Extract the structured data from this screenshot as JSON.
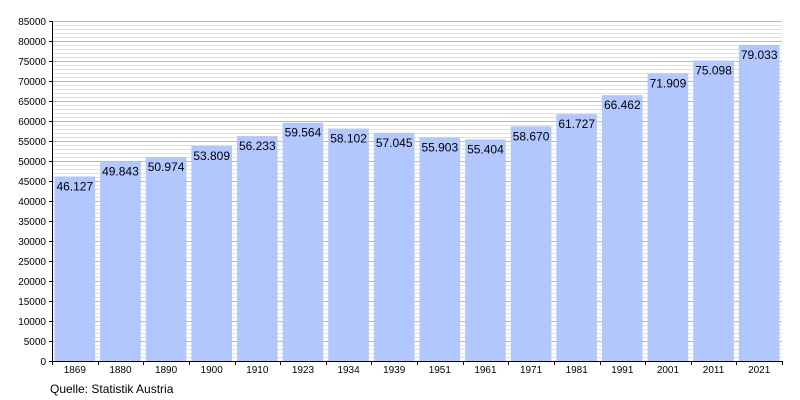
{
  "chart_data": {
    "type": "bar",
    "categories": [
      "1869",
      "1880",
      "1890",
      "1900",
      "1910",
      "1923",
      "1934",
      "1939",
      "1951",
      "1961",
      "1971",
      "1981",
      "1991",
      "2001",
      "2011",
      "2021"
    ],
    "values": [
      46127,
      49843,
      50974,
      53809,
      56233,
      59564,
      58102,
      57045,
      55903,
      55404,
      58670,
      61727,
      66462,
      71909,
      75098,
      79033
    ],
    "value_labels": [
      "46.127",
      "49.843",
      "50.974",
      "53.809",
      "56.233",
      "59.564",
      "58.102",
      "57.045",
      "55.903",
      "55.404",
      "58.670",
      "61.727",
      "66.462",
      "71.909",
      "75.098",
      "79.033"
    ],
    "y_ticks": [
      0,
      5000,
      10000,
      15000,
      20000,
      25000,
      30000,
      35000,
      40000,
      45000,
      50000,
      55000,
      60000,
      65000,
      70000,
      75000,
      80000,
      85000
    ],
    "ylim": [
      0,
      85000
    ],
    "grid": true,
    "bar_color": "#b3c7ff",
    "grid_color": "#c8c8c8"
  },
  "source_text": "Quelle: Statistik Austria"
}
